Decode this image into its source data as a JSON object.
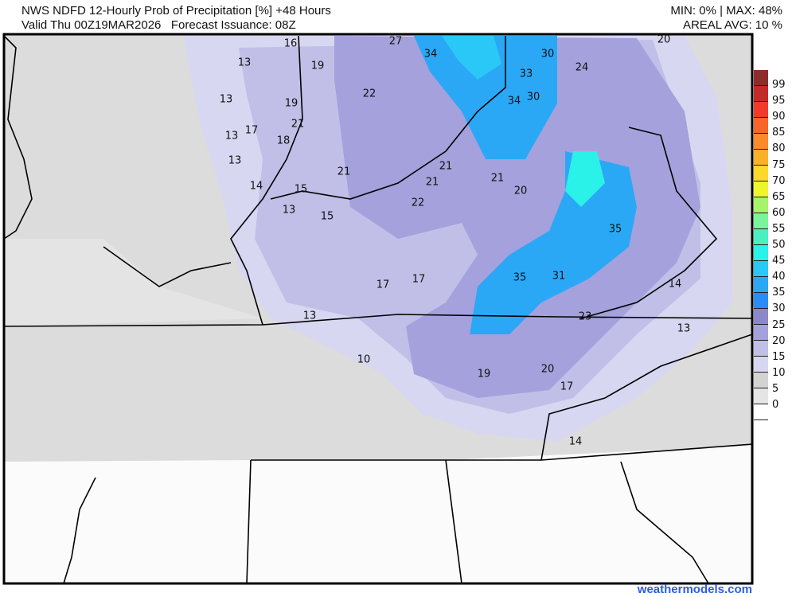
{
  "header": {
    "title": "NWS NDFD 12-Hourly Prob of Precipitation [%] +48 Hours",
    "valid": "Valid Thu 00Z19MAR2026   Forecast Issuance: 08Z",
    "minmax": "MIN: 0% | MAX: 48%",
    "areal_avg": "AREAL AVG: 10 %"
  },
  "legend": {
    "labels": [
      "99",
      "95",
      "90",
      "85",
      "80",
      "75",
      "70",
      "65",
      "60",
      "55",
      "50",
      "45",
      "40",
      "35",
      "30",
      "25",
      "20",
      "15",
      "10",
      "5",
      "0"
    ],
    "colors": [
      "#8e2c2c",
      "#c4292b",
      "#f03b2a",
      "#f9642a",
      "#fa8a2a",
      "#fbb02a",
      "#fcd82c",
      "#eef52c",
      "#a5f46c",
      "#7af59c",
      "#4af0c2",
      "#2af2e8",
      "#2ac8f6",
      "#2aa8f6",
      "#2a8cf6",
      "#8c88c8",
      "#a4a1dc",
      "#c1bfe7",
      "#d8d7f1",
      "#d3d3d3",
      "#e5e5e5",
      "#ffffff"
    ]
  },
  "map_values": [
    "16",
    "27",
    "34",
    "30",
    "20",
    "13",
    "19",
    "33",
    "24",
    "13",
    "22",
    "19",
    "34",
    "30",
    "13",
    "17",
    "21",
    "18",
    "13",
    "21",
    "21",
    "21",
    "21",
    "20",
    "14",
    "15",
    "22",
    "13",
    "15",
    "35",
    "17",
    "17",
    "35",
    "31",
    "14",
    "13",
    "23",
    "13",
    "10",
    "19",
    "20",
    "17",
    "14"
  ],
  "credit": "weathermodels.com"
}
